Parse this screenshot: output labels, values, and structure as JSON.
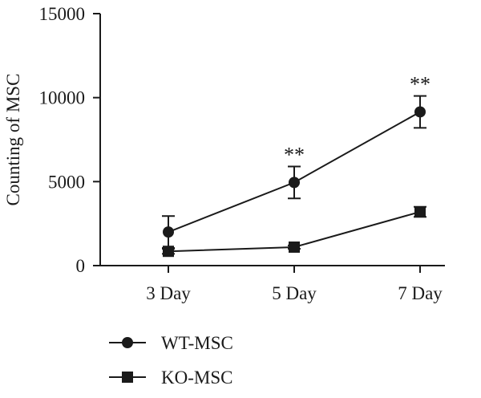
{
  "chart_data": {
    "type": "line",
    "ylabel": "Counting of MSC",
    "xlabel": "",
    "categories": [
      "3 Day",
      "5 Day",
      "7 Day"
    ],
    "ylim": [
      0,
      15000
    ],
    "yticks": [
      0,
      5000,
      10000,
      15000
    ],
    "ytick_labels": [
      "0",
      "5000",
      "10000",
      "15000"
    ],
    "grid": false,
    "legend_position": "bottom-left",
    "series": [
      {
        "name": "WT-MSC",
        "marker": "circle",
        "color": "#1a1a1a",
        "values": [
          2000,
          4950,
          9150
        ],
        "error": [
          950,
          950,
          950
        ],
        "annotations": [
          "",
          "**",
          "**"
        ]
      },
      {
        "name": "KO-MSC",
        "marker": "square",
        "color": "#1a1a1a",
        "values": [
          850,
          1100,
          3200
        ],
        "error": [
          150,
          100,
          300
        ],
        "annotations": [
          "",
          "",
          ""
        ]
      }
    ]
  }
}
